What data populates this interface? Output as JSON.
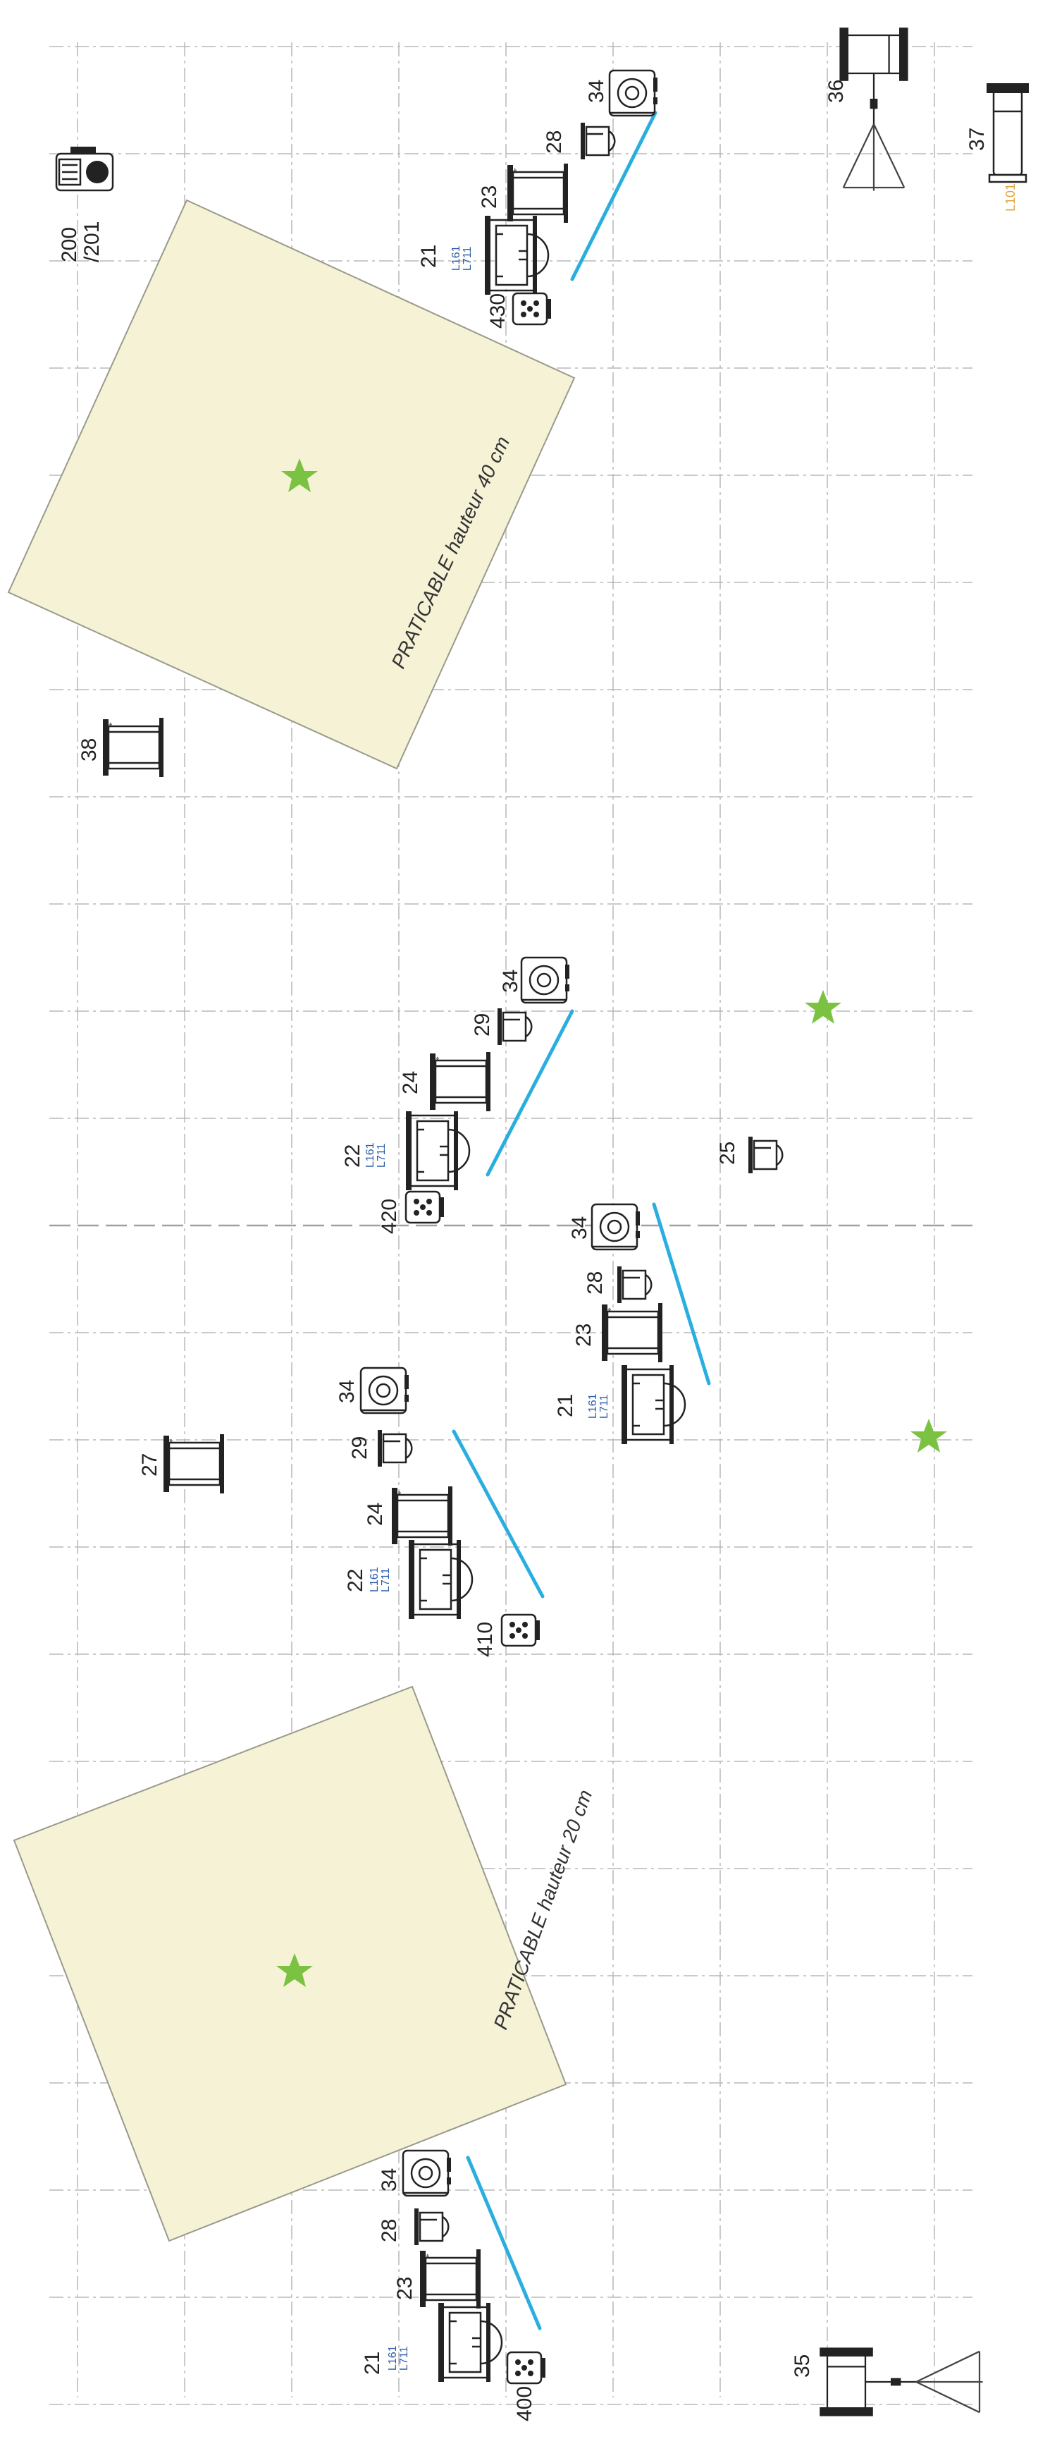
{
  "praticables": [
    {
      "label": "PRATICABLE hauteur 40 cm"
    },
    {
      "label": "PRATICABLE hauteur 20 cm"
    }
  ],
  "fixtures": [
    {
      "id": "f200",
      "label": "200\n/201",
      "type": "moving-head"
    },
    {
      "id": "f36",
      "label": "36",
      "type": "tripod-spot"
    },
    {
      "id": "f37",
      "label": "37",
      "type": "floor-spot",
      "gel": "L101"
    },
    {
      "id": "f34a",
      "label": "34",
      "type": "par-dial"
    },
    {
      "id": "f28a",
      "label": "28",
      "type": "small-fresnel"
    },
    {
      "id": "f23a",
      "label": "23",
      "type": "profile"
    },
    {
      "id": "f21a",
      "label": "21",
      "type": "large-pc",
      "gel": "L161\nL711"
    },
    {
      "id": "f430",
      "label": "430",
      "type": "led-par"
    },
    {
      "id": "f38",
      "label": "38",
      "type": "profile"
    },
    {
      "id": "f34b",
      "label": "34",
      "type": "par-dial"
    },
    {
      "id": "f29a",
      "label": "29",
      "type": "small-fresnel"
    },
    {
      "id": "f24a",
      "label": "24",
      "type": "profile"
    },
    {
      "id": "f22a",
      "label": "22",
      "type": "large-pc",
      "gel": "L161\nL711"
    },
    {
      "id": "f420",
      "label": "420",
      "type": "led-par"
    },
    {
      "id": "f25",
      "label": "25",
      "type": "small-fresnel"
    },
    {
      "id": "f34c",
      "label": "34",
      "type": "par-dial"
    },
    {
      "id": "f28b",
      "label": "28",
      "type": "small-fresnel"
    },
    {
      "id": "f23b",
      "label": "23",
      "type": "profile"
    },
    {
      "id": "f21b",
      "label": "21",
      "type": "large-pc",
      "gel": "L161\nL711"
    },
    {
      "id": "f34d",
      "label": "34",
      "type": "par-dial"
    },
    {
      "id": "f27",
      "label": "27",
      "type": "profile"
    },
    {
      "id": "f29b",
      "label": "29",
      "type": "small-fresnel"
    },
    {
      "id": "f24b",
      "label": "24",
      "type": "profile"
    },
    {
      "id": "f22b",
      "label": "22",
      "type": "large-pc",
      "gel": "L161\nL711"
    },
    {
      "id": "f410",
      "label": "410",
      "type": "led-par"
    },
    {
      "id": "f34e",
      "label": "34",
      "type": "par-dial"
    },
    {
      "id": "f28c",
      "label": "28",
      "type": "small-fresnel"
    },
    {
      "id": "f23c",
      "label": "23",
      "type": "profile"
    },
    {
      "id": "f21c",
      "label": "21",
      "type": "large-pc",
      "gel": "L161\nL711"
    },
    {
      "id": "f400",
      "label": "400",
      "type": "led-par"
    },
    {
      "id": "f35",
      "label": "35",
      "type": "tripod-spot"
    }
  ],
  "colors": {
    "beam": "#2aaee0",
    "marker": "#7cc242",
    "praticable_fill": "#f5f2d6",
    "gel_text": "#2a5ca8",
    "gel_amber": "#e0a43a"
  }
}
